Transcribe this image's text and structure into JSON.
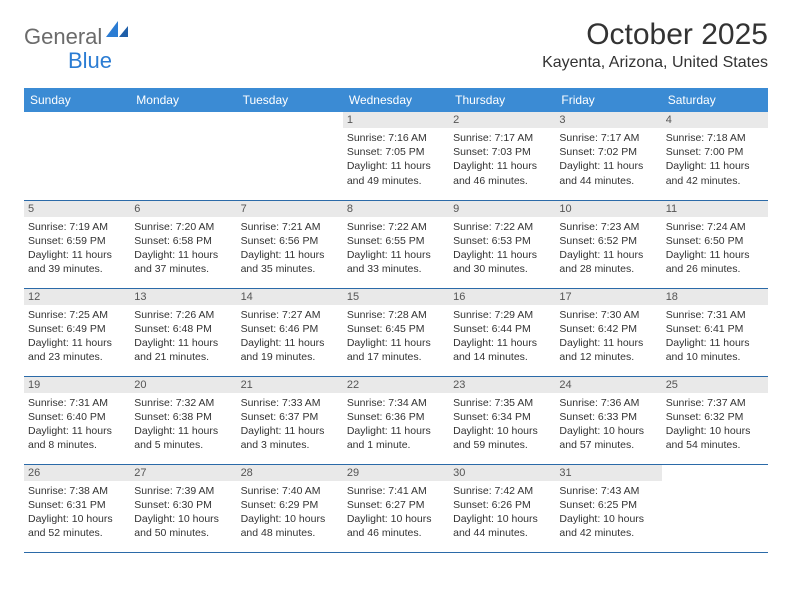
{
  "logo": {
    "text1": "General",
    "text2": "Blue"
  },
  "title": "October 2025",
  "location": "Kayenta, Arizona, United States",
  "colors": {
    "header_bg": "#3b8bd4",
    "header_text": "#ffffff",
    "daynum_bg": "#e9e9e9",
    "border": "#2b6aa8",
    "logo_gray": "#6b6b6b",
    "logo_blue": "#2b7cd3"
  },
  "day_headers": [
    "Sunday",
    "Monday",
    "Tuesday",
    "Wednesday",
    "Thursday",
    "Friday",
    "Saturday"
  ],
  "weeks": [
    [
      null,
      null,
      null,
      {
        "n": "1",
        "rise": "7:16 AM",
        "set": "7:05 PM",
        "dh": "11",
        "dm": "49"
      },
      {
        "n": "2",
        "rise": "7:17 AM",
        "set": "7:03 PM",
        "dh": "11",
        "dm": "46"
      },
      {
        "n": "3",
        "rise": "7:17 AM",
        "set": "7:02 PM",
        "dh": "11",
        "dm": "44"
      },
      {
        "n": "4",
        "rise": "7:18 AM",
        "set": "7:00 PM",
        "dh": "11",
        "dm": "42"
      }
    ],
    [
      {
        "n": "5",
        "rise": "7:19 AM",
        "set": "6:59 PM",
        "dh": "11",
        "dm": "39"
      },
      {
        "n": "6",
        "rise": "7:20 AM",
        "set": "6:58 PM",
        "dh": "11",
        "dm": "37"
      },
      {
        "n": "7",
        "rise": "7:21 AM",
        "set": "6:56 PM",
        "dh": "11",
        "dm": "35"
      },
      {
        "n": "8",
        "rise": "7:22 AM",
        "set": "6:55 PM",
        "dh": "11",
        "dm": "33"
      },
      {
        "n": "9",
        "rise": "7:22 AM",
        "set": "6:53 PM",
        "dh": "11",
        "dm": "30"
      },
      {
        "n": "10",
        "rise": "7:23 AM",
        "set": "6:52 PM",
        "dh": "11",
        "dm": "28"
      },
      {
        "n": "11",
        "rise": "7:24 AM",
        "set": "6:50 PM",
        "dh": "11",
        "dm": "26"
      }
    ],
    [
      {
        "n": "12",
        "rise": "7:25 AM",
        "set": "6:49 PM",
        "dh": "11",
        "dm": "23"
      },
      {
        "n": "13",
        "rise": "7:26 AM",
        "set": "6:48 PM",
        "dh": "11",
        "dm": "21"
      },
      {
        "n": "14",
        "rise": "7:27 AM",
        "set": "6:46 PM",
        "dh": "11",
        "dm": "19"
      },
      {
        "n": "15",
        "rise": "7:28 AM",
        "set": "6:45 PM",
        "dh": "11",
        "dm": "17"
      },
      {
        "n": "16",
        "rise": "7:29 AM",
        "set": "6:44 PM",
        "dh": "11",
        "dm": "14"
      },
      {
        "n": "17",
        "rise": "7:30 AM",
        "set": "6:42 PM",
        "dh": "11",
        "dm": "12"
      },
      {
        "n": "18",
        "rise": "7:31 AM",
        "set": "6:41 PM",
        "dh": "11",
        "dm": "10"
      }
    ],
    [
      {
        "n": "19",
        "rise": "7:31 AM",
        "set": "6:40 PM",
        "dh": "11",
        "dm": "8"
      },
      {
        "n": "20",
        "rise": "7:32 AM",
        "set": "6:38 PM",
        "dh": "11",
        "dm": "5"
      },
      {
        "n": "21",
        "rise": "7:33 AM",
        "set": "6:37 PM",
        "dh": "11",
        "dm": "3"
      },
      {
        "n": "22",
        "rise": "7:34 AM",
        "set": "6:36 PM",
        "dh": "11",
        "dm": "1"
      },
      {
        "n": "23",
        "rise": "7:35 AM",
        "set": "6:34 PM",
        "dh": "10",
        "dm": "59"
      },
      {
        "n": "24",
        "rise": "7:36 AM",
        "set": "6:33 PM",
        "dh": "10",
        "dm": "57"
      },
      {
        "n": "25",
        "rise": "7:37 AM",
        "set": "6:32 PM",
        "dh": "10",
        "dm": "54"
      }
    ],
    [
      {
        "n": "26",
        "rise": "7:38 AM",
        "set": "6:31 PM",
        "dh": "10",
        "dm": "52"
      },
      {
        "n": "27",
        "rise": "7:39 AM",
        "set": "6:30 PM",
        "dh": "10",
        "dm": "50"
      },
      {
        "n": "28",
        "rise": "7:40 AM",
        "set": "6:29 PM",
        "dh": "10",
        "dm": "48"
      },
      {
        "n": "29",
        "rise": "7:41 AM",
        "set": "6:27 PM",
        "dh": "10",
        "dm": "46"
      },
      {
        "n": "30",
        "rise": "7:42 AM",
        "set": "6:26 PM",
        "dh": "10",
        "dm": "44"
      },
      {
        "n": "31",
        "rise": "7:43 AM",
        "set": "6:25 PM",
        "dh": "10",
        "dm": "42"
      },
      null
    ]
  ]
}
